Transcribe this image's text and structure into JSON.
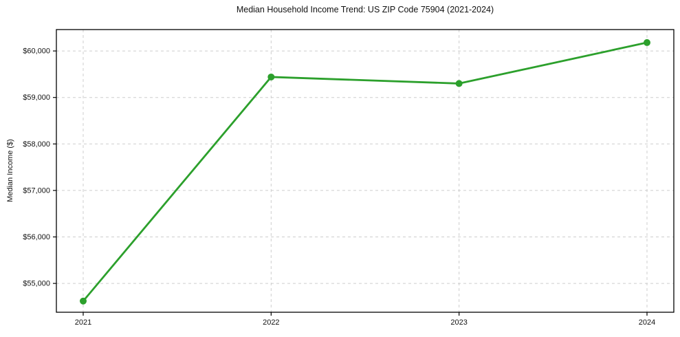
{
  "chart_data": {
    "type": "line",
    "title": "Median Household Income Trend: US ZIP Code 75904 (2021-2024)",
    "xlabel": "",
    "ylabel": "Median Income ($)",
    "x": [
      2021,
      2022,
      2023,
      2024
    ],
    "x_tick_labels": [
      "2021",
      "2022",
      "2023",
      "2024"
    ],
    "series": [
      {
        "name": "Median Household Income",
        "values": [
          54620,
          59440,
          59300,
          60180
        ]
      }
    ],
    "y_ticks": [
      55000,
      56000,
      57000,
      58000,
      59000,
      60000
    ],
    "y_tick_labels": [
      "$55,000",
      "$56,000",
      "$57,000",
      "$58,000",
      "$59,000",
      "$60,000"
    ],
    "ylim": [
      54380,
      60460
    ],
    "grid": true,
    "legend_position": "none",
    "line_color": "#2ca02c",
    "marker": "circle",
    "marker_radius": 5
  }
}
